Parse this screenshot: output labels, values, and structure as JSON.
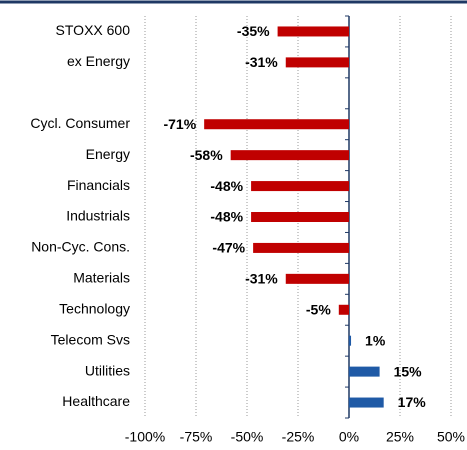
{
  "chart_data": {
    "type": "hbar",
    "categories": [
      "STOXX 600",
      "ex Energy",
      null,
      "Cycl. Consumer",
      "Energy",
      "Financials",
      "Industrials",
      "Non-Cyc. Cons.",
      "Materials",
      "Technology",
      "Telecom Svs",
      "Utilities",
      "Healthcare"
    ],
    "values": [
      -35,
      -31,
      null,
      -71,
      -58,
      -48,
      -48,
      -47,
      -31,
      -5,
      1,
      15,
      17
    ],
    "value_labels": [
      "-35%",
      "-31%",
      null,
      "-71%",
      "-58%",
      "-48%",
      "-48%",
      "-47%",
      "-31%",
      "-5%",
      "1%",
      "15%",
      "17%"
    ],
    "color_negative": "#c00000",
    "color_positive": "#1f5aa6",
    "xlim": [
      -100,
      50
    ],
    "xticks": [
      {
        "value": -100,
        "label": "-100%"
      },
      {
        "value": -75,
        "label": "-75%"
      },
      {
        "value": -50,
        "label": "-50%"
      },
      {
        "value": -25,
        "label": "-25%"
      },
      {
        "value": 0,
        "label": "0%"
      },
      {
        "value": 25,
        "label": "25%"
      },
      {
        "value": 50,
        "label": "50%"
      }
    ],
    "grid": true
  }
}
